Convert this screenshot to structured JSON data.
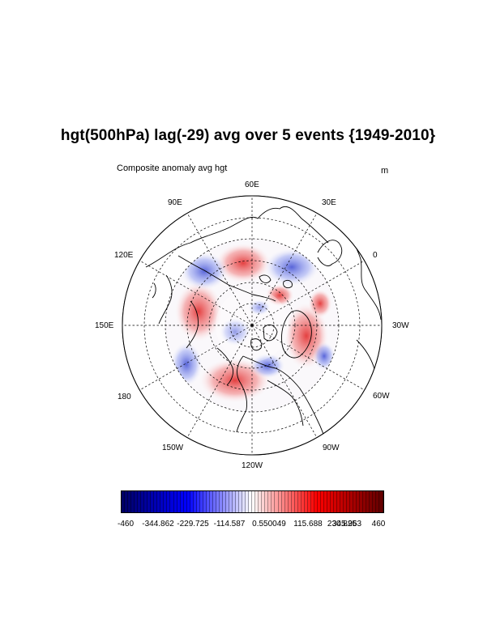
{
  "title": "hgt(500hPa) lag(-29) avg over 5 events {1949-2010}",
  "left_string": "Composite anomaly avg hgt",
  "right_string": "m",
  "longitude_labels": [
    "60E",
    "30E",
    "0",
    "30W",
    "60W",
    "90W",
    "120W",
    "150W",
    "180",
    "150E",
    "120E",
    "90E"
  ],
  "projection": "polar stereographic, north pole",
  "colorbar": {
    "min": -460,
    "max": 460,
    "colormap": "blue-white-red",
    "low_color": "#000066",
    "mid_color": "#ffffff",
    "high_color": "#660000",
    "labels": [
      "-460",
      "-344.862",
      "-229.725",
      "-114.587",
      "0.550049",
      "115.688",
      "230.825",
      "345.963",
      "460"
    ]
  },
  "chart_data": {
    "type": "heatmap",
    "title": "hgt(500hPa) lag(-29) avg over 5 events {1949-2010}",
    "variable": "hgt",
    "level": "500hPa",
    "units": "m",
    "value_range": [
      -460,
      460
    ],
    "anomaly_regions": [
      {
        "sign": "positive",
        "location": "northern Asia / Siberia"
      },
      {
        "sign": "negative",
        "location": "northern Europe / Scandinavia"
      },
      {
        "sign": "positive",
        "location": "western Russia / near 30E-60E"
      },
      {
        "sign": "negative",
        "location": "central Asia"
      },
      {
        "sign": "positive",
        "location": "northern Pacific / Alaska"
      },
      {
        "sign": "positive",
        "location": "western Atlantic / Greenland sector"
      },
      {
        "sign": "negative",
        "location": "North America / Canada"
      },
      {
        "sign": "negative",
        "location": "near pole"
      }
    ]
  }
}
